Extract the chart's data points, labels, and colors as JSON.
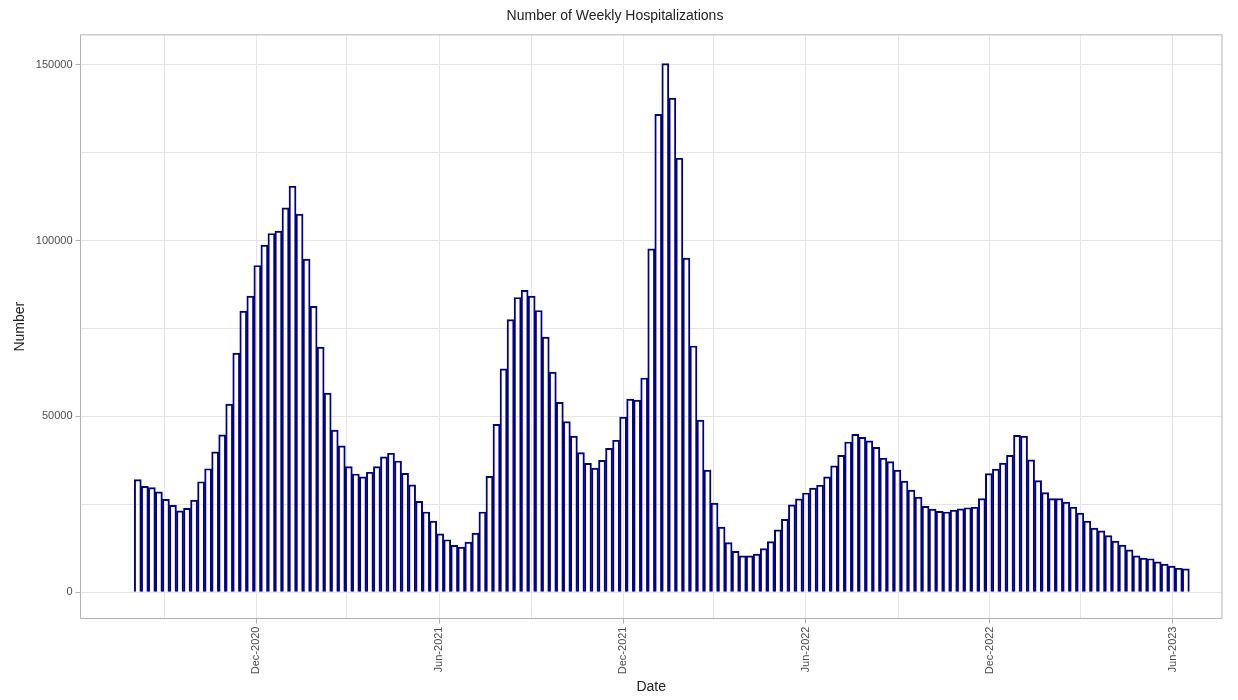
{
  "chart_data": {
    "type": "bar",
    "title": "Number of Weekly Hospitalizations",
    "xlabel": "Date",
    "ylabel": "Number",
    "x": [
      "2020-08-05",
      "2020-08-12",
      "2020-08-19",
      "2020-08-26",
      "2020-09-02",
      "2020-09-09",
      "2020-09-16",
      "2020-09-23",
      "2020-09-30",
      "2020-10-07",
      "2020-10-14",
      "2020-10-21",
      "2020-10-28",
      "2020-11-04",
      "2020-11-11",
      "2020-11-18",
      "2020-11-25",
      "2020-12-02",
      "2020-12-09",
      "2020-12-16",
      "2020-12-23",
      "2020-12-30",
      "2021-01-06",
      "2021-01-13",
      "2021-01-20",
      "2021-01-27",
      "2021-02-03",
      "2021-02-10",
      "2021-02-17",
      "2021-02-24",
      "2021-03-03",
      "2021-03-10",
      "2021-03-17",
      "2021-03-24",
      "2021-03-31",
      "2021-04-07",
      "2021-04-14",
      "2021-04-21",
      "2021-04-28",
      "2021-05-05",
      "2021-05-12",
      "2021-05-19",
      "2021-05-26",
      "2021-06-02",
      "2021-06-09",
      "2021-06-16",
      "2021-06-23",
      "2021-06-30",
      "2021-07-07",
      "2021-07-14",
      "2021-07-21",
      "2021-07-28",
      "2021-08-04",
      "2021-08-11",
      "2021-08-18",
      "2021-08-25",
      "2021-09-01",
      "2021-09-08",
      "2021-09-15",
      "2021-09-22",
      "2021-09-29",
      "2021-10-06",
      "2021-10-13",
      "2021-10-20",
      "2021-10-27",
      "2021-11-03",
      "2021-11-10",
      "2021-11-17",
      "2021-11-24",
      "2021-12-01",
      "2021-12-08",
      "2021-12-15",
      "2021-12-22",
      "2021-12-29",
      "2022-01-05",
      "2022-01-12",
      "2022-01-19",
      "2022-01-26",
      "2022-02-02",
      "2022-02-09",
      "2022-02-16",
      "2022-02-23",
      "2022-03-02",
      "2022-03-09",
      "2022-03-16",
      "2022-03-23",
      "2022-03-30",
      "2022-04-06",
      "2022-04-13",
      "2022-04-20",
      "2022-04-27",
      "2022-05-04",
      "2022-05-11",
      "2022-05-18",
      "2022-05-25",
      "2022-06-01",
      "2022-06-08",
      "2022-06-15",
      "2022-06-22",
      "2022-06-29",
      "2022-07-06",
      "2022-07-13",
      "2022-07-20",
      "2022-07-27",
      "2022-08-03",
      "2022-08-10",
      "2022-08-17",
      "2022-08-24",
      "2022-08-31",
      "2022-09-07",
      "2022-09-14",
      "2022-09-21",
      "2022-09-28",
      "2022-10-05",
      "2022-10-12",
      "2022-10-19",
      "2022-10-26",
      "2022-11-02",
      "2022-11-09",
      "2022-11-16",
      "2022-11-23",
      "2022-11-30",
      "2022-12-07",
      "2022-12-14",
      "2022-12-21",
      "2022-12-28",
      "2023-01-04",
      "2023-01-11",
      "2023-01-18",
      "2023-01-25",
      "2023-02-01",
      "2023-02-08",
      "2023-02-15",
      "2023-02-22",
      "2023-03-01",
      "2023-03-08",
      "2023-03-15",
      "2023-03-22",
      "2023-03-29",
      "2023-04-05",
      "2023-04-12",
      "2023-04-19",
      "2023-04-26",
      "2023-05-03",
      "2023-05-10",
      "2023-05-17",
      "2023-05-24",
      "2023-05-31",
      "2023-06-07",
      "2023-06-14"
    ],
    "values": [
      32000,
      30100,
      29700,
      28500,
      26400,
      24700,
      23100,
      23800,
      26200,
      31400,
      35100,
      39900,
      44700,
      53500,
      68000,
      79900,
      84200,
      92900,
      98700,
      102000,
      102700,
      109300,
      115500,
      107500,
      94700,
      81300,
      69700,
      56600,
      46100,
      41600,
      35700,
      33600,
      32800,
      34100,
      35700,
      38500,
      39500,
      37300,
      33800,
      30500,
      25800,
      22800,
      20200,
      16600,
      14900,
      13300,
      12800,
      14200,
      16800,
      22800,
      32900,
      47700,
      63500,
      77500,
      83800,
      85800,
      84200,
      80100,
      72500,
      62600,
      54000,
      48500,
      44400,
      39700,
      36600,
      35300,
      37500,
      40900,
      43200,
      49800,
      54900,
      54600,
      60900,
      97600,
      135900,
      150300,
      140500,
      123400,
      95000,
      70000,
      48900,
      34700,
      25300,
      18500,
      14100,
      11600,
      10300,
      10300,
      10800,
      12400,
      14400,
      17700,
      20700,
      24800,
      26500,
      28200,
      29600,
      30400,
      32800,
      35900,
      38900,
      42700,
      44900,
      44000,
      43000,
      41200,
      38100,
      37100,
      34700,
      31600,
      29000,
      27000,
      24400,
      23600,
      23000,
      22800,
      23300,
      23700,
      24000,
      24200,
      26600,
      33700,
      35000,
      36700,
      38900,
      44600,
      44400,
      37600,
      31700,
      28300,
      26600,
      26600,
      25600,
      24200,
      22500,
      20200,
      18200,
      17400,
      16100,
      14500,
      13400,
      12000,
      10300,
      9700,
      9500,
      8600,
      8000,
      7400,
      6800,
      6600
    ],
    "color": "#00008b",
    "xlim": [
      "2020-06-09",
      "2023-07-20"
    ],
    "xticks": [
      {
        "value": "2020-09-01",
        "label": null
      },
      {
        "value": "2020-12-01",
        "label": "Dec-2020"
      },
      {
        "value": "2021-03-01",
        "label": null
      },
      {
        "value": "2021-06-01",
        "label": "Jun-2021"
      },
      {
        "value": "2021-09-01",
        "label": null
      },
      {
        "value": "2021-12-01",
        "label": "Dec-2021"
      },
      {
        "value": "2022-03-01",
        "label": null
      },
      {
        "value": "2022-06-01",
        "label": "Jun-2022"
      },
      {
        "value": "2022-09-01",
        "label": null
      },
      {
        "value": "2022-12-01",
        "label": "Dec-2022"
      },
      {
        "value": "2023-03-01",
        "label": null
      },
      {
        "value": "2023-06-01",
        "label": "Jun-2023"
      }
    ],
    "ylim": [
      -7500,
      158500
    ],
    "yticks": [
      0,
      {
        "value": 25000,
        "label": null
      },
      50000,
      {
        "value": 75000,
        "label": null
      },
      100000,
      {
        "value": 125000,
        "label": null
      },
      150000
    ],
    "grid": true,
    "legend": false
  }
}
